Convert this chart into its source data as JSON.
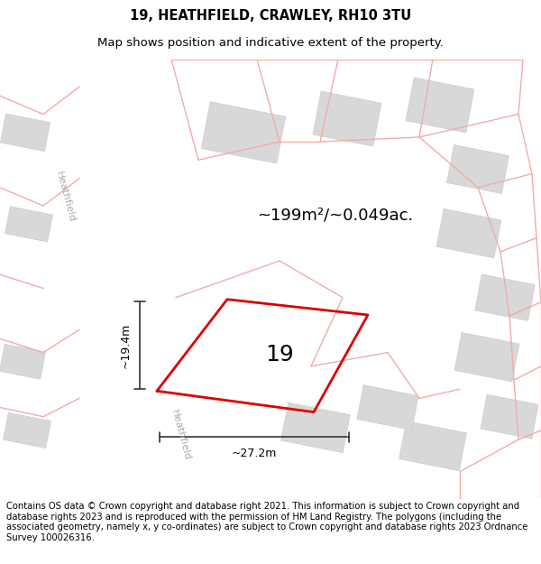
{
  "title": "19, HEATHFIELD, CRAWLEY, RH10 3TU",
  "subtitle": "Map shows position and indicative extent of the property.",
  "footer": "Contains OS data © Crown copyright and database right 2021. This information is subject to Crown copyright and database rights 2023 and is reproduced with the permission of HM Land Registry. The polygons (including the associated geometry, namely x, y co-ordinates) are subject to Crown copyright and database rights 2023 Ordnance Survey 100026316.",
  "area_label": "~199m²/~0.049ac.",
  "number_label": "19",
  "width_label": "~27.2m",
  "height_label": "~19.4m",
  "bg_color": "#ffffff",
  "map_bg": "#efefef",
  "road_color": "#ffffff",
  "building_fill": "#d8d8d8",
  "building_edge": "#cccccc",
  "boundary_color": "#dd0000",
  "pink_line_color": "#f4aaaa",
  "dim_line_color": "#333333",
  "street_color": "#aaaaaa",
  "title_fontsize": 10.5,
  "subtitle_fontsize": 9.5,
  "footer_fontsize": 7.2,
  "area_fontsize": 13,
  "number_fontsize": 18,
  "dim_fontsize": 9,
  "street_fontsize": 8
}
